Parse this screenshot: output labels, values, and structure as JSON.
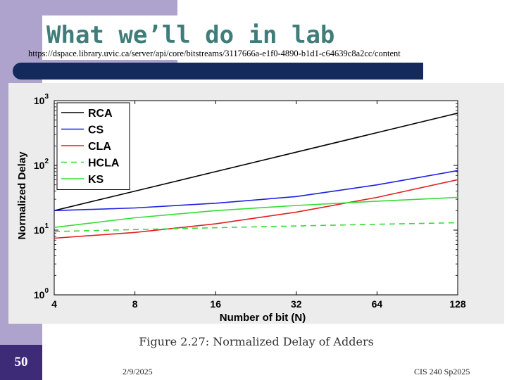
{
  "slide": {
    "title": "What we’ll do in lab",
    "url": "https://dspace.library.uvic.ca/server/api/core/bitstreams/3117666a-e1f0-4890-b1d1-c64639c8a2cc/content",
    "caption": "Figure 2.27: Normalized Delay of Adders",
    "page_number": "50",
    "date": "2/9/2025",
    "course": "CIS 240 Sp2025",
    "colors": {
      "sidebar": "#ADA3CC",
      "title": "#3F7D79",
      "navy_bar": "#142A5C",
      "page_box": "#3D2B78"
    }
  },
  "chart_data": {
    "type": "line",
    "title": "",
    "xlabel": "Number of bit (N)",
    "ylabel": "Normalized Delay",
    "x_scale": "log2",
    "y_scale": "log10",
    "x": [
      4,
      8,
      16,
      32,
      64,
      128
    ],
    "x_tick_labels": [
      "4",
      "8",
      "16",
      "32",
      "64",
      "128"
    ],
    "xlim": [
      4,
      128
    ],
    "y_tick_labels": [
      "10^0",
      "10^1",
      "10^2",
      "10^3"
    ],
    "ylim": [
      1,
      1000
    ],
    "grid": false,
    "legend_position": "top-left",
    "series": [
      {
        "name": "RCA",
        "color": "#000000",
        "dash": "solid",
        "values": [
          20,
          40,
          80,
          160,
          320,
          640
        ]
      },
      {
        "name": "CS",
        "color": "#1F1FE0",
        "dash": "solid",
        "values": [
          20,
          22,
          26,
          33,
          50,
          83
        ]
      },
      {
        "name": "CLA",
        "color": "#E02020",
        "dash": "solid",
        "values": [
          7.5,
          9.2,
          12.5,
          19,
          32,
          60
        ]
      },
      {
        "name": "HCLA",
        "color": "#33DD33",
        "dash": "dashed",
        "values": [
          9.5,
          10.2,
          10.9,
          11.6,
          12.3,
          13
        ]
      },
      {
        "name": "KS",
        "color": "#33DD33",
        "dash": "solid",
        "values": [
          11,
          15.5,
          20,
          24,
          28,
          32
        ]
      }
    ]
  }
}
